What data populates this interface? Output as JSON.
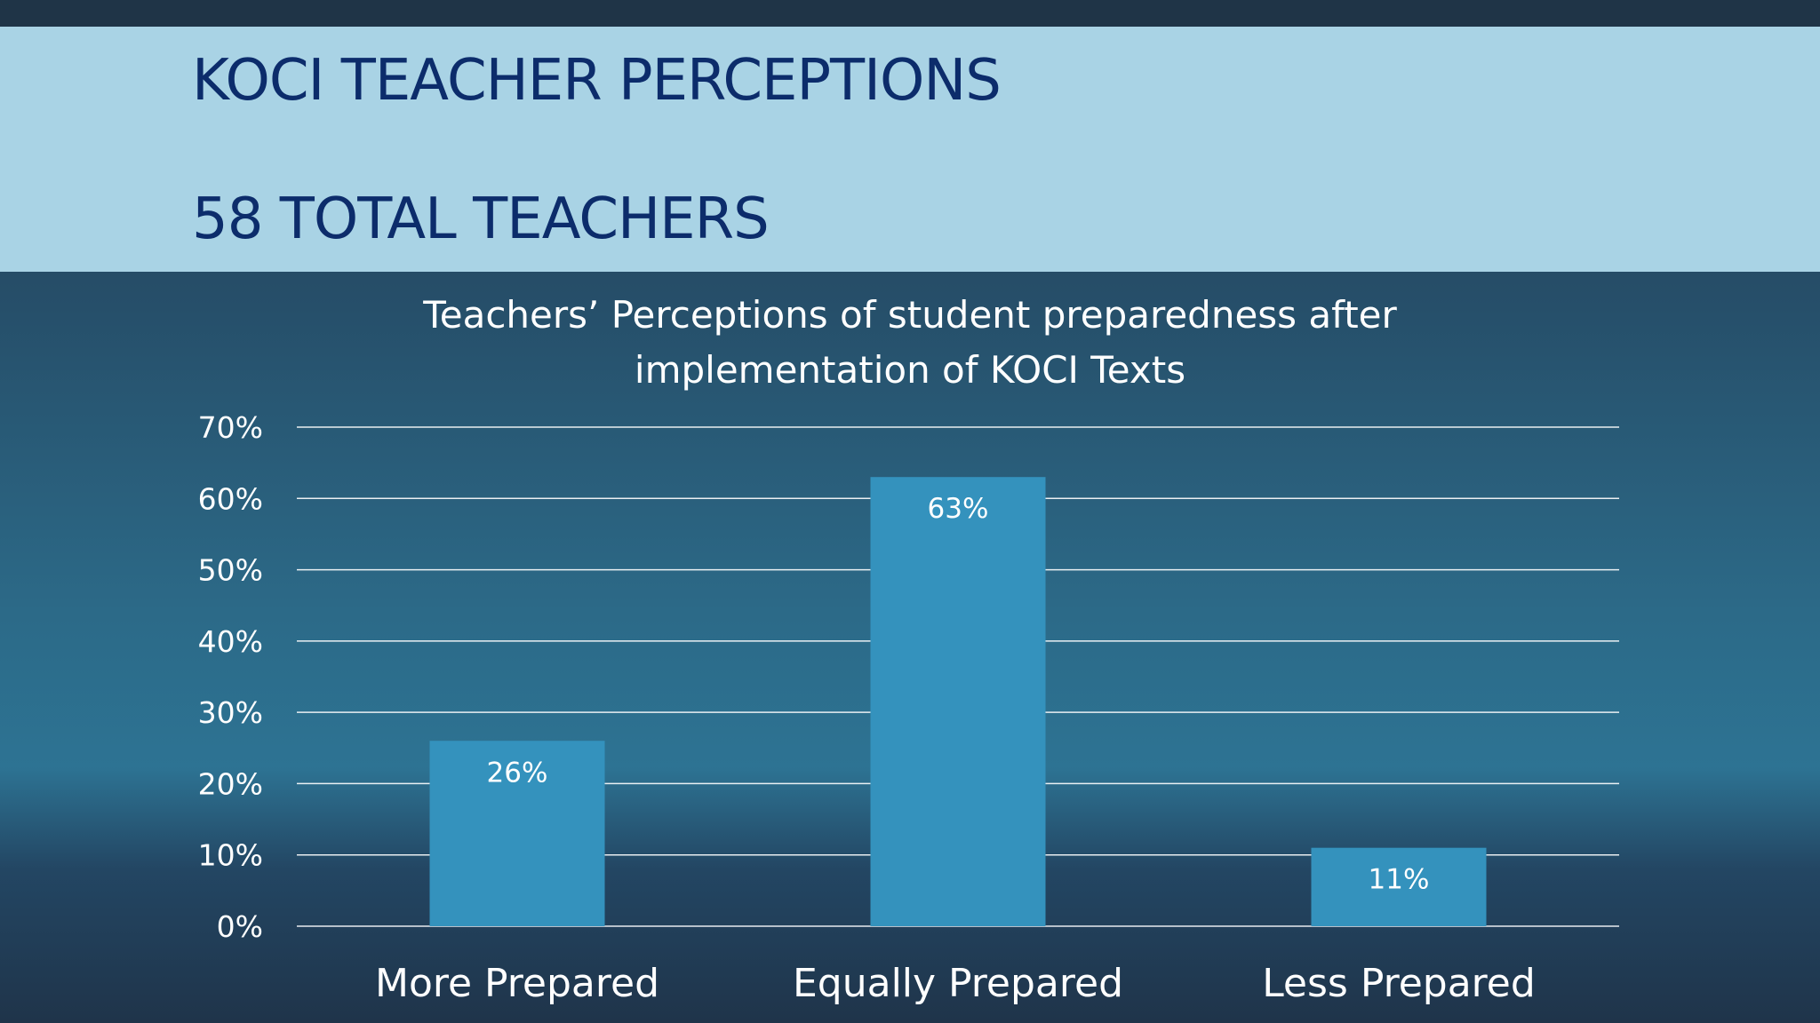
{
  "slide": {
    "title_line1": "KOCI TEACHER PERCEPTIONS",
    "title_line2": "58 TOTAL TEACHERS"
  },
  "chart_data": {
    "type": "bar",
    "title": "Teachers’ Perceptions of student preparedness after implementation of KOCI Texts",
    "categories": [
      "More Prepared",
      "Equally Prepared",
      "Less Prepared"
    ],
    "values": [
      26,
      63,
      11
    ],
    "data_labels": [
      "26%",
      "63%",
      "11%"
    ],
    "y_ticks": [
      "0%",
      "10%",
      "20%",
      "30%",
      "40%",
      "50%",
      "60%",
      "70%"
    ],
    "ylim": [
      0,
      70
    ],
    "grid": true,
    "bar_color": "#3492bd",
    "text_color": "#ffffff",
    "gridline_color": "#ffffff"
  }
}
